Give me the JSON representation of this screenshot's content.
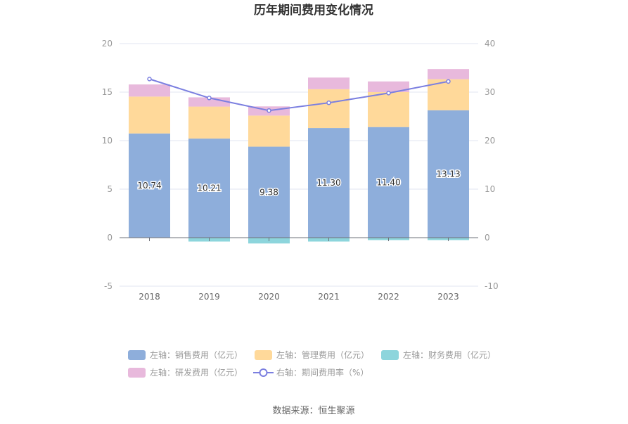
{
  "chart_data": {
    "type": "bar",
    "title": "历年期间费用变化情况",
    "categories": [
      "2018",
      "2019",
      "2020",
      "2021",
      "2022",
      "2023"
    ],
    "left_axis": {
      "ylim": [
        -5,
        20
      ],
      "ticks": [
        "-5",
        "0",
        "5",
        "10",
        "15",
        "20"
      ]
    },
    "right_axis": {
      "ylim": [
        -10,
        40
      ],
      "ticks": [
        "-10",
        "0",
        "10",
        "20",
        "30",
        "40"
      ]
    },
    "series": [
      {
        "name": "左轴：销售费用（亿元）",
        "axis": "left",
        "stacked": true,
        "color": "#8eaedb",
        "values": [
          10.74,
          10.21,
          9.38,
          11.3,
          11.4,
          13.13
        ],
        "labels": [
          "10.74",
          "10.21",
          "9.38",
          "11.30",
          "11.40",
          "13.13"
        ]
      },
      {
        "name": "左轴：管理费用（亿元）",
        "axis": "left",
        "stacked": true,
        "color": "#ffd99a",
        "values": [
          3.8,
          3.3,
          3.2,
          4.0,
          3.6,
          3.2
        ]
      },
      {
        "name": "左轴：财务费用（亿元）",
        "axis": "left",
        "stacked": true,
        "color": "#8dd5dc",
        "values": [
          0.0,
          -0.4,
          -0.6,
          -0.4,
          -0.25,
          -0.25
        ]
      },
      {
        "name": "左轴：研发费用（亿元）",
        "axis": "left",
        "stacked": true,
        "color": "#e8b9dc",
        "values": [
          1.25,
          0.95,
          0.95,
          1.2,
          1.1,
          1.05
        ]
      },
      {
        "name": "右轴：期间费用率（%）",
        "axis": "right",
        "type": "line",
        "color": "#7b7fe0",
        "values": [
          32.7,
          28.8,
          26.2,
          27.8,
          29.8,
          32.2
        ]
      }
    ],
    "legend_position": "bottom",
    "grid": true
  },
  "source_text": "数据来源：恒生聚源"
}
